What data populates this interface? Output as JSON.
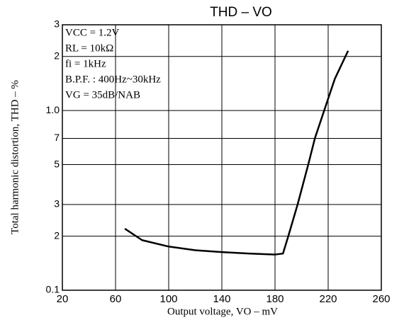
{
  "chart_data": {
    "type": "line",
    "title": "THD – VO",
    "x_label": "Output voltage, VO – mV",
    "y_label": "Total harmonic distortion, THD – %",
    "annotations": [
      "VCC = 1.2V",
      "RL = 10kΩ",
      "fi = 1kHz",
      "B.P.F. : 400Hz~30kHz",
      "VG = 35dB/NAB"
    ],
    "xlim": [
      20,
      260
    ],
    "xticks": [
      20,
      60,
      100,
      140,
      180,
      220,
      260
    ],
    "ylim": [
      0.1,
      3
    ],
    "y_scale": "log",
    "yticks": [
      0.1,
      {
        "value": 0.2,
        "label": "2"
      },
      {
        "value": 0.3,
        "label": "3"
      },
      {
        "value": 0.5,
        "label": "5"
      },
      {
        "value": 0.7,
        "label": "7"
      },
      {
        "value": 1,
        "label": "1.0"
      },
      2,
      3
    ],
    "grid": true,
    "series": [
      {
        "color": "#000000",
        "x": [
          67,
          80,
          100,
          120,
          140,
          160,
          180,
          186,
          190,
          197,
          205,
          210,
          217,
          225,
          235
        ],
        "values": [
          0.22,
          0.19,
          0.175,
          0.167,
          0.163,
          0.16,
          0.158,
          0.16,
          0.2,
          0.3,
          0.5,
          0.7,
          1.0,
          1.5,
          2.15
        ]
      }
    ]
  }
}
